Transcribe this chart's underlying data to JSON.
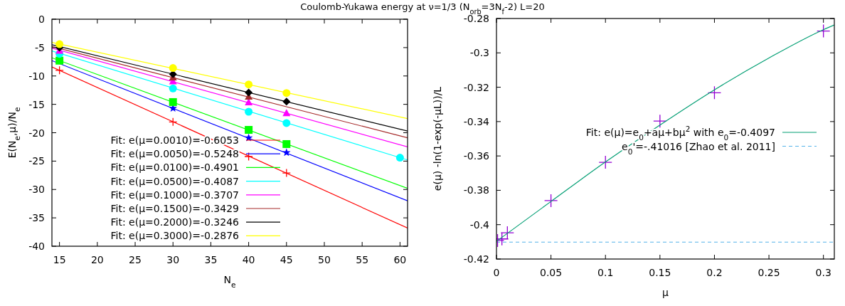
{
  "chart_data": [
    {
      "type": "line",
      "title": "Coulomb-Yukawa energy at ν=1/3 (N$_{orb}$=3N$_{f}$-2) L=20",
      "xlabel": "N$_{e}$",
      "ylabel": "E(N$_{e}$,μ)/N$_{e}$",
      "xlim": [
        14,
        61
      ],
      "ylim": [
        -40,
        0
      ],
      "xticks": [
        15,
        20,
        25,
        30,
        35,
        40,
        45,
        50,
        55,
        60
      ],
      "yticks": [
        -40,
        -35,
        -30,
        -25,
        -20,
        -15,
        -10,
        -5,
        0
      ],
      "grid": false,
      "legend": "bottom left",
      "series": [
        {
          "name": "Fit: e(μ=0.0010)=-0.6053",
          "type": "line",
          "color": "#ff0000",
          "x": [
            14,
            61
          ],
          "values": [
            -8.4,
            -36.8
          ]
        },
        {
          "name": "Fit: e(μ=0.0050)=-0.5248",
          "type": "line",
          "color": "#0000ff",
          "x": [
            14,
            61
          ],
          "values": [
            -7.3,
            -32.0
          ]
        },
        {
          "name": "Fit: e(μ=0.0100)=-0.4901",
          "type": "line",
          "color": "#00ff00",
          "x": [
            14,
            61
          ],
          "values": [
            -6.8,
            -29.8
          ]
        },
        {
          "name": "Fit: e(μ=0.0500)=-0.4087",
          "type": "line",
          "color": "#00ffff",
          "x": [
            14,
            61
          ],
          "values": [
            -5.6,
            -24.8
          ]
        },
        {
          "name": "Fit: e(μ=0.1000)=-0.3707",
          "type": "line",
          "color": "#ff00ff",
          "x": [
            14,
            61
          ],
          "values": [
            -5.1,
            -22.5
          ]
        },
        {
          "name": "Fit: e(μ=0.1500)=-0.3429",
          "type": "line",
          "color": "#a52a2a",
          "x": [
            14,
            61
          ],
          "values": [
            -4.8,
            -20.9
          ]
        },
        {
          "name": "Fit: e(μ=0.2000)=-0.3246",
          "type": "line",
          "color": "#000000",
          "x": [
            14,
            61
          ],
          "values": [
            -4.5,
            -19.7
          ]
        },
        {
          "name": "Fit: e(μ=0.3000)=-0.2876",
          "type": "line",
          "color": "#ffff00",
          "x": [
            14,
            61
          ],
          "values": [
            -4.1,
            -17.5
          ]
        },
        {
          "type": "scatter",
          "marker": "cross",
          "color": "#ff0000",
          "x": [
            15,
            30,
            40,
            45
          ],
          "values": [
            -9.0,
            -18.1,
            -24.2,
            -27.1
          ]
        },
        {
          "type": "scatter",
          "marker": "star",
          "color": "#0000ff",
          "x": [
            30,
            40,
            45
          ],
          "values": [
            -15.7,
            -20.9,
            -23.5
          ]
        },
        {
          "type": "scatter",
          "marker": "square",
          "color": "#00ff00",
          "x": [
            15,
            30,
            40,
            45
          ],
          "values": [
            -7.3,
            -14.6,
            -19.5,
            -22.0
          ]
        },
        {
          "type": "scatter",
          "marker": "circle",
          "color": "#00ffff",
          "x": [
            15,
            30,
            40,
            45,
            60
          ],
          "values": [
            -6.1,
            -12.2,
            -16.3,
            -18.3,
            -24.4
          ]
        },
        {
          "type": "scatter",
          "marker": "triangle",
          "color": "#ff00ff",
          "x": [
            15,
            30,
            40,
            45
          ],
          "values": [
            -5.6,
            -11.0,
            -14.7,
            -16.6
          ]
        },
        {
          "type": "scatter",
          "marker": "triangle",
          "color": "#a52a2a",
          "x": [
            30,
            40
          ],
          "values": [
            -10.3,
            -13.7
          ]
        },
        {
          "type": "scatter",
          "marker": "diamond",
          "color": "#000000",
          "x": [
            15,
            30,
            40,
            45
          ],
          "values": [
            -5.0,
            -9.7,
            -12.9,
            -14.5
          ]
        },
        {
          "type": "scatter",
          "marker": "circle",
          "color": "#ffff00",
          "x": [
            15,
            30,
            40,
            45
          ],
          "values": [
            -4.4,
            -8.6,
            -11.5,
            -13.0
          ]
        }
      ]
    },
    {
      "type": "line",
      "xlabel": "μ",
      "ylabel": "e(μ) -ln(1-exp(-μL))/L",
      "xlim": [
        0,
        0.31
      ],
      "ylim": [
        -0.42,
        -0.28
      ],
      "xticks": [
        0,
        0.05,
        0.1,
        0.15,
        0.2,
        0.25,
        0.3
      ],
      "yticks": [
        -0.42,
        -0.4,
        -0.38,
        -0.36,
        -0.34,
        -0.32,
        -0.3,
        -0.28
      ],
      "grid": false,
      "legend": "right",
      "series": [
        {
          "type": "scatter",
          "marker": "cross",
          "color": "#9400d3",
          "x": [
            0.001,
            0.005,
            0.01,
            0.05,
            0.1,
            0.15,
            0.2,
            0.3
          ],
          "values": [
            -0.4092,
            -0.4083,
            -0.4047,
            -0.386,
            -0.3637,
            -0.3397,
            -0.3232,
            -0.2873
          ]
        },
        {
          "name": "Fit: e(μ)=e$_{0}$+aμ+bμ$^{2}$ with e$_{0}$=-0.4097",
          "type": "line",
          "color": "#009e73",
          "x": [
            0,
            0.05,
            0.1,
            0.15,
            0.2,
            0.25,
            0.3,
            0.31
          ],
          "values": [
            -0.4097,
            -0.3865,
            -0.3635,
            -0.342,
            -0.3215,
            -0.303,
            -0.2865,
            -0.2838
          ]
        }
      ],
      "ref_lines": [
        {
          "axis": "y",
          "value": -0.41016,
          "label": "e$_{0}$'=-.41016 [Zhao et al. 2011]",
          "color": "#56b4e9",
          "line_style": "dashed"
        }
      ]
    }
  ]
}
